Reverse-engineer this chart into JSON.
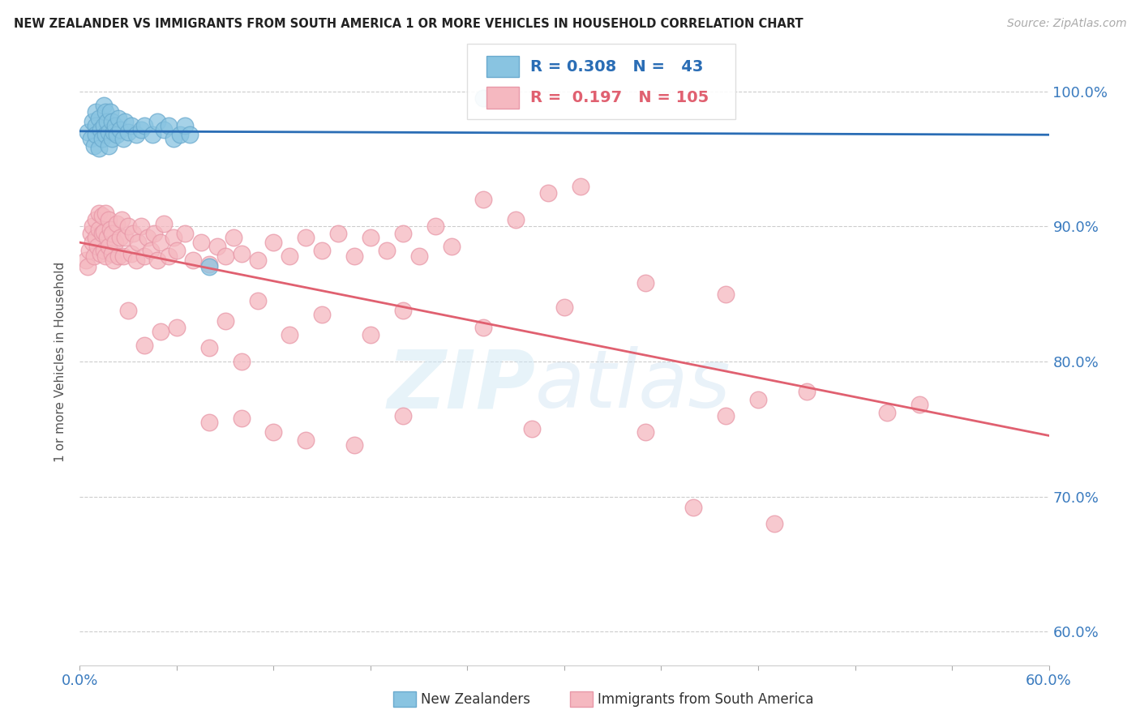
{
  "title": "NEW ZEALANDER VS IMMIGRANTS FROM SOUTH AMERICA 1 OR MORE VEHICLES IN HOUSEHOLD CORRELATION CHART",
  "source": "Source: ZipAtlas.com",
  "ylabel": "1 or more Vehicles in Household",
  "ytick_labels": [
    "60.0%",
    "70.0%",
    "80.0%",
    "90.0%",
    "100.0%"
  ],
  "ytick_values": [
    0.6,
    0.7,
    0.8,
    0.9,
    1.0
  ],
  "xlim": [
    0.0,
    0.6
  ],
  "ylim": [
    0.575,
    1.025
  ],
  "legend_r_blue": "0.308",
  "legend_n_blue": "43",
  "legend_r_pink": "0.197",
  "legend_n_pink": "105",
  "blue_color": "#89c4e1",
  "pink_color": "#f5b8c0",
  "blue_line_color": "#2a6db5",
  "pink_line_color": "#e06070",
  "blue_edge_color": "#6aaace",
  "pink_edge_color": "#e898a8",
  "watermark_zip": "ZIP",
  "watermark_atlas": "atlas",
  "blue_x": [
    0.005,
    0.007,
    0.008,
    0.009,
    0.01,
    0.01,
    0.01,
    0.012,
    0.012,
    0.013,
    0.014,
    0.015,
    0.015,
    0.016,
    0.016,
    0.017,
    0.018,
    0.018,
    0.019,
    0.02,
    0.02,
    0.021,
    0.022,
    0.023,
    0.024,
    0.025,
    0.027,
    0.028,
    0.03,
    0.032,
    0.035,
    0.038,
    0.04,
    0.045,
    0.048,
    0.052,
    0.055,
    0.058,
    0.062,
    0.065,
    0.068,
    0.08,
    0.25
  ],
  "blue_y": [
    0.97,
    0.965,
    0.978,
    0.96,
    0.985,
    0.975,
    0.968,
    0.98,
    0.958,
    0.972,
    0.965,
    0.99,
    0.975,
    0.985,
    0.968,
    0.978,
    0.97,
    0.96,
    0.985,
    0.978,
    0.965,
    0.97,
    0.975,
    0.968,
    0.98,
    0.972,
    0.965,
    0.978,
    0.97,
    0.975,
    0.968,
    0.972,
    0.975,
    0.968,
    0.978,
    0.972,
    0.975,
    0.965,
    0.968,
    0.975,
    0.968,
    0.87,
    0.995
  ],
  "pink_x": [
    0.004,
    0.005,
    0.006,
    0.007,
    0.008,
    0.008,
    0.009,
    0.01,
    0.01,
    0.011,
    0.012,
    0.012,
    0.013,
    0.014,
    0.014,
    0.015,
    0.015,
    0.016,
    0.016,
    0.017,
    0.018,
    0.018,
    0.019,
    0.02,
    0.02,
    0.021,
    0.022,
    0.023,
    0.024,
    0.025,
    0.026,
    0.027,
    0.028,
    0.03,
    0.032,
    0.033,
    0.035,
    0.036,
    0.038,
    0.04,
    0.042,
    0.044,
    0.046,
    0.048,
    0.05,
    0.052,
    0.055,
    0.058,
    0.06,
    0.065,
    0.07,
    0.075,
    0.08,
    0.085,
    0.09,
    0.095,
    0.1,
    0.11,
    0.12,
    0.13,
    0.14,
    0.15,
    0.16,
    0.17,
    0.18,
    0.19,
    0.2,
    0.21,
    0.22,
    0.23,
    0.25,
    0.27,
    0.29,
    0.31,
    0.1,
    0.05,
    0.03,
    0.04,
    0.06,
    0.08,
    0.09,
    0.11,
    0.13,
    0.15,
    0.18,
    0.2,
    0.25,
    0.3,
    0.35,
    0.4,
    0.35,
    0.4,
    0.42,
    0.45,
    0.5,
    0.52,
    0.43,
    0.38,
    0.28,
    0.2,
    0.17,
    0.14,
    0.12,
    0.1,
    0.08
  ],
  "pink_y": [
    0.875,
    0.87,
    0.882,
    0.895,
    0.888,
    0.9,
    0.878,
    0.892,
    0.905,
    0.885,
    0.898,
    0.91,
    0.88,
    0.895,
    0.908,
    0.882,
    0.896,
    0.91,
    0.878,
    0.892,
    0.905,
    0.885,
    0.898,
    0.88,
    0.895,
    0.875,
    0.888,
    0.902,
    0.878,
    0.892,
    0.905,
    0.878,
    0.892,
    0.9,
    0.88,
    0.895,
    0.875,
    0.888,
    0.9,
    0.878,
    0.892,
    0.882,
    0.895,
    0.875,
    0.888,
    0.902,
    0.878,
    0.892,
    0.882,
    0.895,
    0.875,
    0.888,
    0.872,
    0.885,
    0.878,
    0.892,
    0.88,
    0.875,
    0.888,
    0.878,
    0.892,
    0.882,
    0.895,
    0.878,
    0.892,
    0.882,
    0.895,
    0.878,
    0.9,
    0.885,
    0.92,
    0.905,
    0.925,
    0.93,
    0.8,
    0.822,
    0.838,
    0.812,
    0.825,
    0.81,
    0.83,
    0.845,
    0.82,
    0.835,
    0.82,
    0.838,
    0.825,
    0.84,
    0.858,
    0.85,
    0.748,
    0.76,
    0.772,
    0.778,
    0.762,
    0.768,
    0.68,
    0.692,
    0.75,
    0.76,
    0.738,
    0.742,
    0.748,
    0.758,
    0.755
  ]
}
